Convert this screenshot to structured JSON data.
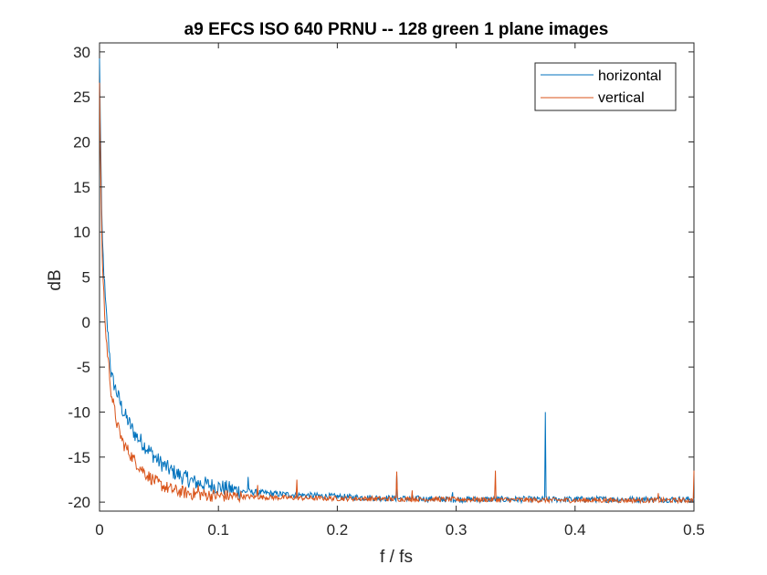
{
  "chart_data": {
    "type": "line",
    "title": "a9 EFCS ISO 640 PRNU -- 128 green 1 plane images",
    "xlabel": "f / fs",
    "ylabel": "dB",
    "xlim": [
      0,
      0.5
    ],
    "ylim": [
      -21,
      31
    ],
    "xticks": [
      0,
      0.1,
      0.2,
      0.3,
      0.4,
      0.5
    ],
    "xtick_labels": [
      "0",
      "0.1",
      "0.2",
      "0.3",
      "0.4",
      "0.5"
    ],
    "yticks": [
      30,
      25,
      20,
      15,
      10,
      5,
      0,
      -5,
      -10,
      -15,
      -20
    ],
    "ytick_labels": [
      "30",
      "25",
      "20",
      "15",
      "10",
      "5",
      "0",
      "-5",
      "-10",
      "-15",
      "-20"
    ],
    "grid": false,
    "legend_position": "top-right",
    "series": [
      {
        "name": "horizontal",
        "color": "#0072BD",
        "baseline": [
          [
            0,
            29
          ],
          [
            0.002,
            10
          ],
          [
            0.005,
            2
          ],
          [
            0.01,
            -6
          ],
          [
            0.02,
            -10
          ],
          [
            0.03,
            -12.5
          ],
          [
            0.04,
            -14
          ],
          [
            0.05,
            -15.5
          ],
          [
            0.06,
            -16.5
          ],
          [
            0.07,
            -17.2
          ],
          [
            0.08,
            -17.8
          ],
          [
            0.1,
            -18.3
          ],
          [
            0.12,
            -18.8
          ],
          [
            0.15,
            -19.1
          ],
          [
            0.2,
            -19.4
          ],
          [
            0.25,
            -19.6
          ],
          [
            0.3,
            -19.7
          ],
          [
            0.4,
            -19.7
          ],
          [
            0.5,
            -19.7
          ]
        ],
        "spikes": [
          [
            0.074,
            -16.6
          ],
          [
            0.125,
            -17.2
          ],
          [
            0.25,
            -16.9
          ],
          [
            0.297,
            -18.9
          ],
          [
            0.375,
            -10.0
          ]
        ]
      },
      {
        "name": "vertical",
        "color": "#D95319",
        "baseline": [
          [
            0,
            26
          ],
          [
            0.002,
            8
          ],
          [
            0.005,
            -1
          ],
          [
            0.01,
            -8
          ],
          [
            0.015,
            -11.5
          ],
          [
            0.02,
            -13.5
          ],
          [
            0.03,
            -15.5
          ],
          [
            0.04,
            -17
          ],
          [
            0.05,
            -18
          ],
          [
            0.06,
            -18.6
          ],
          [
            0.07,
            -18.9
          ],
          [
            0.08,
            -19.1
          ],
          [
            0.1,
            -19.3
          ],
          [
            0.15,
            -19.5
          ],
          [
            0.2,
            -19.6
          ],
          [
            0.3,
            -19.7
          ],
          [
            0.4,
            -19.8
          ],
          [
            0.5,
            -19.8
          ]
        ],
        "spikes": [
          [
            0.083,
            -18.1
          ],
          [
            0.133,
            -18.1
          ],
          [
            0.166,
            -17.5
          ],
          [
            0.25,
            -16.6
          ],
          [
            0.263,
            -18.7
          ],
          [
            0.333,
            -16.5
          ],
          [
            0.47,
            -19.0
          ],
          [
            0.5,
            -16.5
          ]
        ]
      }
    ]
  }
}
